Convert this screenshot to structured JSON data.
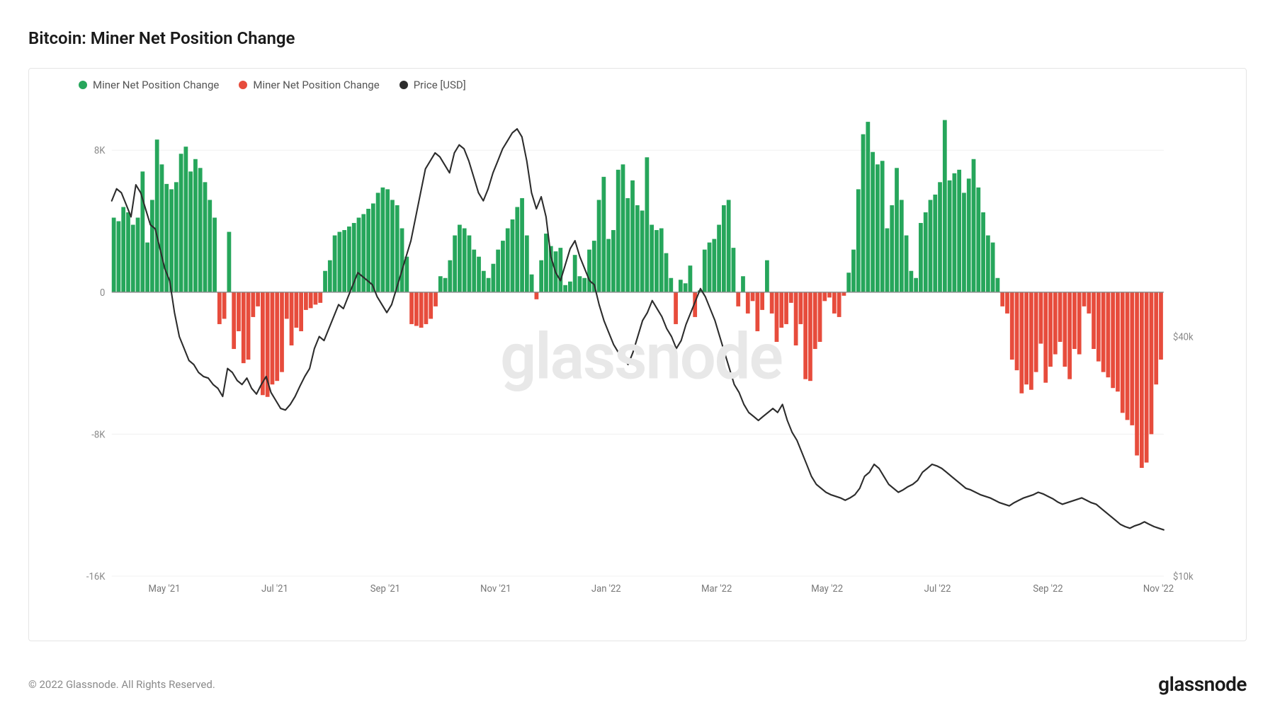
{
  "title": "Bitcoin: Miner Net Position Change",
  "watermark": "glassnode",
  "copyright": "© 2022 Glassnode. All Rights Reserved.",
  "brand": "glassnode",
  "legend": {
    "pos": {
      "label": "Miner Net Position Change",
      "color": "#26a65b"
    },
    "neg": {
      "label": "Miner Net Position Change",
      "color": "#e74c3c"
    },
    "price": {
      "label": "Price [USD]",
      "color": "#2c2c2c"
    }
  },
  "chart": {
    "background_color": "#ffffff",
    "grid_color": "#f0f0f0",
    "zero_line_color": "#888888",
    "left_axis": {
      "min": -16000,
      "max": 11000,
      "ticks": [
        {
          "v": 8000,
          "label": "8K"
        },
        {
          "v": 0,
          "label": "0"
        },
        {
          "v": -8000,
          "label": "-8K"
        },
        {
          "v": -16000,
          "label": "-16K"
        }
      ]
    },
    "right_axis": {
      "min": 10000,
      "max": 70000,
      "ticks": [
        {
          "v": 40000,
          "label": "$40k"
        },
        {
          "v": 10000,
          "label": "$10k"
        }
      ]
    },
    "x_axis": {
      "labels": [
        "May '21",
        "Jul '21",
        "Sep '21",
        "Nov '21",
        "Jan '22",
        "Mar '22",
        "May '22",
        "Jul '22",
        "Sep '22",
        "Nov '22"
      ],
      "positions": [
        0.05,
        0.155,
        0.26,
        0.365,
        0.47,
        0.575,
        0.68,
        0.785,
        0.89,
        0.995
      ]
    },
    "bar_color_pos": "#26a65b",
    "bar_color_neg": "#e74c3c",
    "price_line_color": "#2c2c2c",
    "price_line_width": 2.2,
    "bars": [
      4200,
      4000,
      4800,
      4500,
      3800,
      4200,
      6800,
      2800,
      5200,
      8600,
      7200,
      6100,
      5800,
      6200,
      7800,
      8200,
      6800,
      7500,
      7000,
      6200,
      5200,
      4200,
      -1800,
      -1500,
      3400,
      -3200,
      -2200,
      -4000,
      -3800,
      -1400,
      -800,
      -5800,
      -5900,
      -5200,
      -5000,
      -4500,
      -1500,
      -3000,
      -2000,
      -2200,
      -1000,
      -900,
      -700,
      -600,
      1200,
      1800,
      3200,
      3400,
      3500,
      3700,
      3900,
      4200,
      4400,
      4700,
      5000,
      5600,
      5900,
      5800,
      5200,
      4900,
      3600,
      2000,
      -1800,
      -1900,
      -2000,
      -1800,
      -1500,
      -800,
      900,
      800,
      1800,
      3200,
      3800,
      3600,
      3200,
      2400,
      2000,
      1200,
      800,
      1600,
      2400,
      2900,
      3600,
      4100,
      4800,
      5300,
      3200,
      1000,
      -400,
      1800,
      3300,
      2600,
      2300,
      2500,
      400,
      600,
      2100,
      900,
      800,
      2400,
      2900,
      5200,
      6500,
      3000,
      3500,
      6900,
      7200,
      5300,
      6300,
      4900,
      4600,
      7600,
      3800,
      3500,
      3600,
      2200,
      800,
      -1800,
      700,
      500,
      1500,
      -1400,
      100,
      2400,
      2800,
      3000,
      3800,
      4900,
      5200,
      2500,
      -800,
      900,
      -1200,
      -500,
      -2200,
      -1000,
      1800,
      -1200,
      -2800,
      -2000,
      -1800,
      -600,
      -3000,
      -1800,
      -4900,
      -5000,
      -3200,
      -2800,
      -500,
      -300,
      -1200,
      -1400,
      -200,
      1100,
      2400,
      5800,
      8900,
      9600,
      7900,
      7200,
      7400,
      3600,
      4900,
      7000,
      5200,
      3200,
      1200,
      800,
      3900,
      4500,
      5200,
      5500,
      6200,
      9700,
      6300,
      6700,
      6900,
      5600,
      6400,
      7500,
      5900,
      4500,
      3200,
      2800,
      800,
      -800,
      -1200,
      -3800,
      -4400,
      -5700,
      -5200,
      -5500,
      -4500,
      -2900,
      -5100,
      -4200,
      -3500,
      -2800,
      -4200,
      -4900,
      -3200,
      -3500,
      -800,
      -1200,
      -3200,
      -3900,
      -4500,
      -4800,
      -5400,
      -5600,
      -6800,
      -7200,
      -7500,
      -9200,
      -9900,
      -9600,
      -8000,
      -5200,
      -3800
    ],
    "price": [
      57000,
      58500,
      58000,
      56500,
      55000,
      59000,
      58000,
      56000,
      54000,
      53500,
      51000,
      48500,
      47000,
      43000,
      40000,
      38500,
      37000,
      36500,
      35500,
      35000,
      34800,
      34000,
      33500,
      32500,
      36000,
      35500,
      34500,
      34000,
      34800,
      33500,
      32800,
      34000,
      35000,
      33000,
      32000,
      31000,
      30800,
      31500,
      32500,
      33800,
      35000,
      36000,
      38500,
      40000,
      39500,
      41000,
      42500,
      44000,
      43500,
      45000,
      46500,
      48000,
      47500,
      47000,
      46500,
      45000,
      44000,
      43000,
      44000,
      46000,
      48000,
      50000,
      52000,
      55000,
      58000,
      61000,
      62000,
      63000,
      62500,
      61500,
      60500,
      63000,
      64000,
      63500,
      62000,
      60000,
      58000,
      57000,
      58500,
      60500,
      62000,
      63500,
      64500,
      65500,
      66000,
      65000,
      62000,
      58000,
      56000,
      57500,
      55000,
      50000,
      48000,
      47000,
      49000,
      51000,
      52000,
      50000,
      48500,
      47000,
      46500,
      44000,
      42000,
      40500,
      39000,
      38000,
      37500,
      36500,
      38000,
      40000,
      42000,
      43000,
      44500,
      43500,
      42500,
      41000,
      40000,
      38500,
      39500,
      41500,
      43000,
      44500,
      46000,
      45000,
      43500,
      42000,
      40000,
      38000,
      36000,
      34000,
      33000,
      31500,
      30500,
      30000,
      29500,
      30000,
      30500,
      31000,
      30500,
      31500,
      29500,
      28000,
      27000,
      25500,
      24000,
      22500,
      21500,
      21000,
      20500,
      20200,
      20000,
      19800,
      19500,
      19800,
      20200,
      21000,
      22500,
      23000,
      24000,
      23500,
      22500,
      21500,
      21000,
      20500,
      20800,
      21200,
      21500,
      22000,
      23000,
      23500,
      24000,
      23800,
      23500,
      23000,
      22500,
      22000,
      21500,
      21000,
      20800,
      20500,
      20200,
      20000,
      19800,
      19500,
      19200,
      19000,
      18800,
      19200,
      19500,
      19800,
      20000,
      20200,
      20500,
      20300,
      20000,
      19700,
      19300,
      19000,
      19200,
      19400,
      19600,
      19800,
      19500,
      19200,
      19000,
      18500,
      18000,
      17500,
      17000,
      16500,
      16200,
      16000,
      16300,
      16500,
      16800,
      16500,
      16200,
      16000,
      15800
    ]
  }
}
